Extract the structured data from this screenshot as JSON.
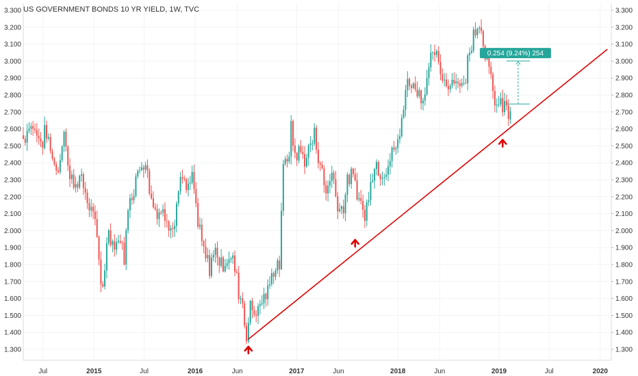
{
  "chart_data": {
    "type": "candlestick",
    "title": "US GOVERNMENT BONDS 10 YR YIELD, 1W, TVC",
    "y_ticks": [
      "3.300",
      "3.200",
      "3.100",
      "3.000",
      "2.900",
      "2.800",
      "2.700",
      "2.600",
      "2.500",
      "2.400",
      "2.300",
      "2.200",
      "2.100",
      "2.000",
      "1.900",
      "1.800",
      "1.700",
      "1.600",
      "1.500",
      "1.400",
      "1.300"
    ],
    "x_ticks": [
      {
        "label": "Jul",
        "date": "2014-07-01",
        "year": false
      },
      {
        "label": "2015",
        "date": "2015-01-01",
        "year": true
      },
      {
        "label": "Jul",
        "date": "2015-07-01",
        "year": false
      },
      {
        "label": "2016",
        "date": "2016-01-01",
        "year": true
      },
      {
        "label": "Jun",
        "date": "2016-06-01",
        "year": false
      },
      {
        "label": "2017",
        "date": "2017-01-01",
        "year": true
      },
      {
        "label": "Jun",
        "date": "2017-06-01",
        "year": false
      },
      {
        "label": "2018",
        "date": "2018-01-01",
        "year": true
      },
      {
        "label": "Jun",
        "date": "2018-06-01",
        "year": false
      },
      {
        "label": "2019",
        "date": "2019-01-01",
        "year": true
      },
      {
        "label": "Jul",
        "date": "2019-07-01",
        "year": false
      },
      {
        "label": "2020",
        "date": "2020-01-01",
        "year": true
      }
    ],
    "ylim": [
      1.3,
      3.3
    ],
    "xlim": [
      "2014-04-21",
      "2020-02-10"
    ],
    "grid": true,
    "colors": {
      "up": "#26a69a",
      "down": "#ef5350",
      "trendline": "#e00000",
      "arrow": "#e00000",
      "measure": "#26a69a"
    },
    "anchors": [
      {
        "date": "2014-04-21",
        "close": 2.54
      },
      {
        "date": "2014-05-12",
        "close": 2.62
      },
      {
        "date": "2014-06-02",
        "close": 2.6
      },
      {
        "date": "2014-06-23",
        "close": 2.52
      },
      {
        "date": "2014-07-14",
        "close": 2.58
      },
      {
        "date": "2014-08-04",
        "close": 2.42
      },
      {
        "date": "2014-08-25",
        "close": 2.35
      },
      {
        "date": "2014-09-15",
        "close": 2.6
      },
      {
        "date": "2014-10-06",
        "close": 2.3
      },
      {
        "date": "2014-10-27",
        "close": 2.3
      },
      {
        "date": "2014-11-17",
        "close": 2.3
      },
      {
        "date": "2014-12-08",
        "close": 2.17
      },
      {
        "date": "2014-12-29",
        "close": 2.12
      },
      {
        "date": "2015-01-19",
        "close": 1.8
      },
      {
        "date": "2015-01-30",
        "close": 1.65
      },
      {
        "date": "2015-02-23",
        "close": 2.0
      },
      {
        "date": "2015-03-16",
        "close": 1.9
      },
      {
        "date": "2015-04-06",
        "close": 1.95
      },
      {
        "date": "2015-04-20",
        "close": 1.86
      },
      {
        "date": "2015-05-11",
        "close": 2.2
      },
      {
        "date": "2015-06-01",
        "close": 2.3
      },
      {
        "date": "2015-06-15",
        "close": 2.38
      },
      {
        "date": "2015-07-06",
        "close": 2.42
      },
      {
        "date": "2015-07-27",
        "close": 2.2
      },
      {
        "date": "2015-08-17",
        "close": 2.1
      },
      {
        "date": "2015-09-07",
        "close": 2.1
      },
      {
        "date": "2015-09-28",
        "close": 2.06
      },
      {
        "date": "2015-10-19",
        "close": 2.04
      },
      {
        "date": "2015-11-09",
        "close": 2.33
      },
      {
        "date": "2015-11-30",
        "close": 2.22
      },
      {
        "date": "2015-12-21",
        "close": 2.3
      },
      {
        "date": "2016-01-11",
        "close": 2.05
      },
      {
        "date": "2016-02-01",
        "close": 1.87
      },
      {
        "date": "2016-02-22",
        "close": 1.78
      },
      {
        "date": "2016-03-14",
        "close": 1.9
      },
      {
        "date": "2016-04-04",
        "close": 1.8
      },
      {
        "date": "2016-04-25",
        "close": 1.82
      },
      {
        "date": "2016-05-16",
        "close": 1.84
      },
      {
        "date": "2016-06-06",
        "close": 1.65
      },
      {
        "date": "2016-06-20",
        "close": 1.58
      },
      {
        "date": "2016-07-05",
        "close": 1.36
      },
      {
        "date": "2016-07-18",
        "close": 1.57
      },
      {
        "date": "2016-08-08",
        "close": 1.52
      },
      {
        "date": "2016-08-29",
        "close": 1.6
      },
      {
        "date": "2016-09-19",
        "close": 1.62
      },
      {
        "date": "2016-10-10",
        "close": 1.78
      },
      {
        "date": "2016-10-31",
        "close": 1.8
      },
      {
        "date": "2016-11-07",
        "close": 2.15
      },
      {
        "date": "2016-11-14",
        "close": 2.35
      },
      {
        "date": "2016-12-05",
        "close": 2.46
      },
      {
        "date": "2016-12-12",
        "close": 2.6
      },
      {
        "date": "2016-12-26",
        "close": 2.45
      },
      {
        "date": "2017-01-16",
        "close": 2.46
      },
      {
        "date": "2017-02-06",
        "close": 2.42
      },
      {
        "date": "2017-03-06",
        "close": 2.58
      },
      {
        "date": "2017-03-27",
        "close": 2.38
      },
      {
        "date": "2017-04-17",
        "close": 2.24
      },
      {
        "date": "2017-05-08",
        "close": 2.35
      },
      {
        "date": "2017-05-29",
        "close": 2.16
      },
      {
        "date": "2017-06-19",
        "close": 2.15
      },
      {
        "date": "2017-07-10",
        "close": 2.33
      },
      {
        "date": "2017-07-31",
        "close": 2.27
      },
      {
        "date": "2017-08-21",
        "close": 2.17
      },
      {
        "date": "2017-09-05",
        "close": 2.06
      },
      {
        "date": "2017-09-25",
        "close": 2.33
      },
      {
        "date": "2017-10-16",
        "close": 2.38
      },
      {
        "date": "2017-11-06",
        "close": 2.35
      },
      {
        "date": "2017-11-27",
        "close": 2.38
      },
      {
        "date": "2017-12-18",
        "close": 2.48
      },
      {
        "date": "2018-01-08",
        "close": 2.55
      },
      {
        "date": "2018-01-29",
        "close": 2.85
      },
      {
        "date": "2018-02-19",
        "close": 2.88
      },
      {
        "date": "2018-03-12",
        "close": 2.84
      },
      {
        "date": "2018-04-02",
        "close": 2.77
      },
      {
        "date": "2018-04-23",
        "close": 2.96
      },
      {
        "date": "2018-05-14",
        "close": 3.06
      },
      {
        "date": "2018-06-04",
        "close": 2.92
      },
      {
        "date": "2018-06-25",
        "close": 2.86
      },
      {
        "date": "2018-07-16",
        "close": 2.9
      },
      {
        "date": "2018-08-06",
        "close": 2.87
      },
      {
        "date": "2018-08-27",
        "close": 2.86
      },
      {
        "date": "2018-09-17",
        "close": 3.06
      },
      {
        "date": "2018-10-01",
        "close": 3.18
      },
      {
        "date": "2018-10-08",
        "close": 3.22
      },
      {
        "date": "2018-10-29",
        "close": 3.2
      },
      {
        "date": "2018-11-12",
        "close": 3.05
      },
      {
        "date": "2018-12-03",
        "close": 2.88
      },
      {
        "date": "2018-12-24",
        "close": 2.73
      },
      {
        "date": "2019-01-07",
        "close": 2.72
      },
      {
        "date": "2019-01-21",
        "close": 2.76
      },
      {
        "date": "2019-02-04",
        "close": 2.68
      },
      {
        "date": "2019-02-11",
        "close": 2.7
      }
    ],
    "trendline": {
      "start": {
        "date": "2016-07-11",
        "value": 1.36
      },
      "end": {
        "date": "2020-01-27",
        "value": 3.07
      }
    },
    "arrows": [
      {
        "date": "2016-07-11",
        "value": 1.3
      },
      {
        "date": "2017-07-31",
        "value": 1.93
      },
      {
        "date": "2019-01-14",
        "value": 2.52
      }
    ],
    "measure": {
      "label": "0.254 (9.24%) 254",
      "from_date": "2019-01-28",
      "to_date": "2019-04-22",
      "from_value": 2.747,
      "to_value": 3.001
    }
  }
}
